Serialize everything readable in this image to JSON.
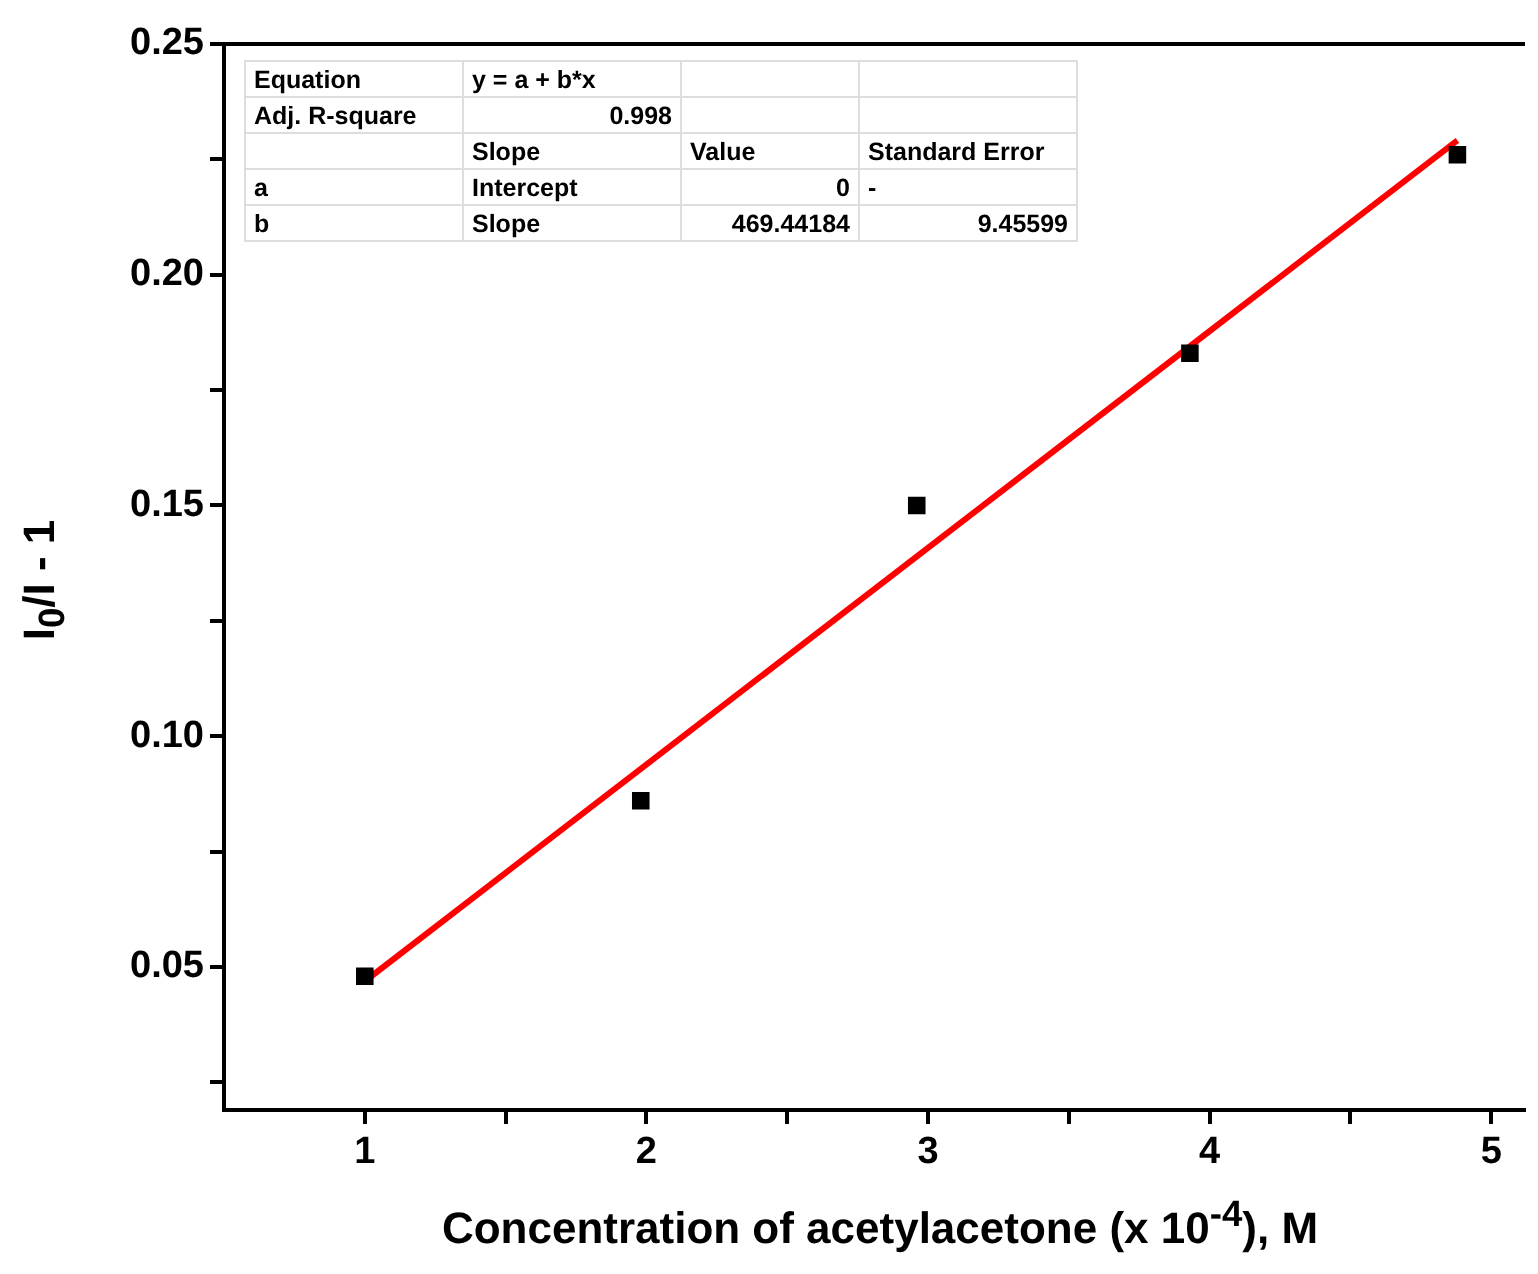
{
  "chart_data": {
    "type": "scatter",
    "xlabel": "Concentration of acetylacetone (x 10$^{-4}$), M",
    "ylabel": "I$_{0}$/I - 1",
    "xlim": [
      0.5,
      5.12
    ],
    "ylim": [
      0.019,
      0.25
    ],
    "xticks": [
      1,
      {
        "value": 1.5,
        "label": null
      },
      2,
      {
        "value": 2.5,
        "label": null
      },
      3,
      {
        "value": 3.5,
        "label": null
      },
      4,
      {
        "value": 4.5,
        "label": null
      },
      5
    ],
    "yticks": [
      {
        "value": 0.025,
        "label": null
      },
      {
        "value": 0.05,
        "label": "0.05"
      },
      {
        "value": 0.075,
        "label": null
      },
      {
        "value": 0.1,
        "label": "0.10"
      },
      {
        "value": 0.125,
        "label": null
      },
      {
        "value": 0.15,
        "label": "0.15"
      },
      {
        "value": 0.175,
        "label": null
      },
      {
        "value": 0.2,
        "label": "0.20"
      },
      {
        "value": 0.225,
        "label": null
      },
      {
        "value": 0.25,
        "label": "0.25"
      }
    ],
    "grid": false,
    "legend": false,
    "series": [
      {
        "color": "#000000",
        "marker": "square",
        "x": [
          1,
          1.98,
          2.96,
          3.93,
          4.88
        ],
        "values": [
          0.048,
          0.086,
          0.15,
          0.183,
          0.226
        ]
      },
      {
        "type": "line",
        "color": "#ff0000",
        "marker": "none",
        "line_style": "solid",
        "x": [
          1,
          4.88
        ],
        "values": [
          0.0469,
          0.2291
        ]
      }
    ],
    "annotations": [
      "Equation",
      "y = a + b*x",
      "Adj. R-square",
      "0.998",
      "Slope",
      "Value",
      "Standard Error",
      "a",
      "Intercept",
      "0",
      "-",
      "b",
      "Slope",
      "469.44184",
      "9.45599"
    ]
  }
}
